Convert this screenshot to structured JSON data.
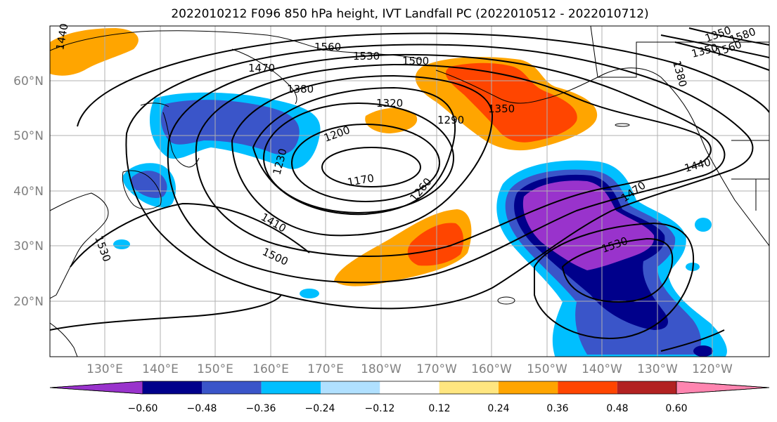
{
  "title": "2022010212 F096 850 hPa height, IVT Landfall PC (2022010512 - 2022010712)",
  "lat_labels": [
    "60°N",
    "50°N",
    "40°N",
    "30°N",
    "20°N"
  ],
  "lon_labels": [
    "130°E",
    "140°E",
    "150°E",
    "160°E",
    "170°E",
    "180°W",
    "170°W",
    "160°W",
    "150°W",
    "140°W",
    "130°W",
    "120°W"
  ],
  "colorbar": {
    "colors": [
      "#9933cc",
      "#00008b",
      "#3a55c9",
      "#00bfff",
      "#b0e0ff",
      "#ffffff",
      "#ffe680",
      "#ffa500",
      "#ff4500",
      "#b22222",
      "#ff85b0"
    ],
    "ticks": [
      "−0.60",
      "−0.48",
      "−0.36",
      "−0.24",
      "−0.12",
      "0.12",
      "0.24",
      "0.36",
      "0.48",
      "0.60"
    ]
  },
  "contour_labels": [
    "1440",
    "1560",
    "1530",
    "1470",
    "1500",
    "1380",
    "1320",
    "1350",
    "1290",
    "1200",
    "1230",
    "1170",
    "1260",
    "1410",
    "1500",
    "1530",
    "1440",
    "1470",
    "1530",
    "1380",
    "1350",
    "1350",
    "1580",
    "1560"
  ],
  "colors": {
    "contour": "#000000",
    "grid": "#b0b0b0",
    "axis_label": "#808080"
  }
}
